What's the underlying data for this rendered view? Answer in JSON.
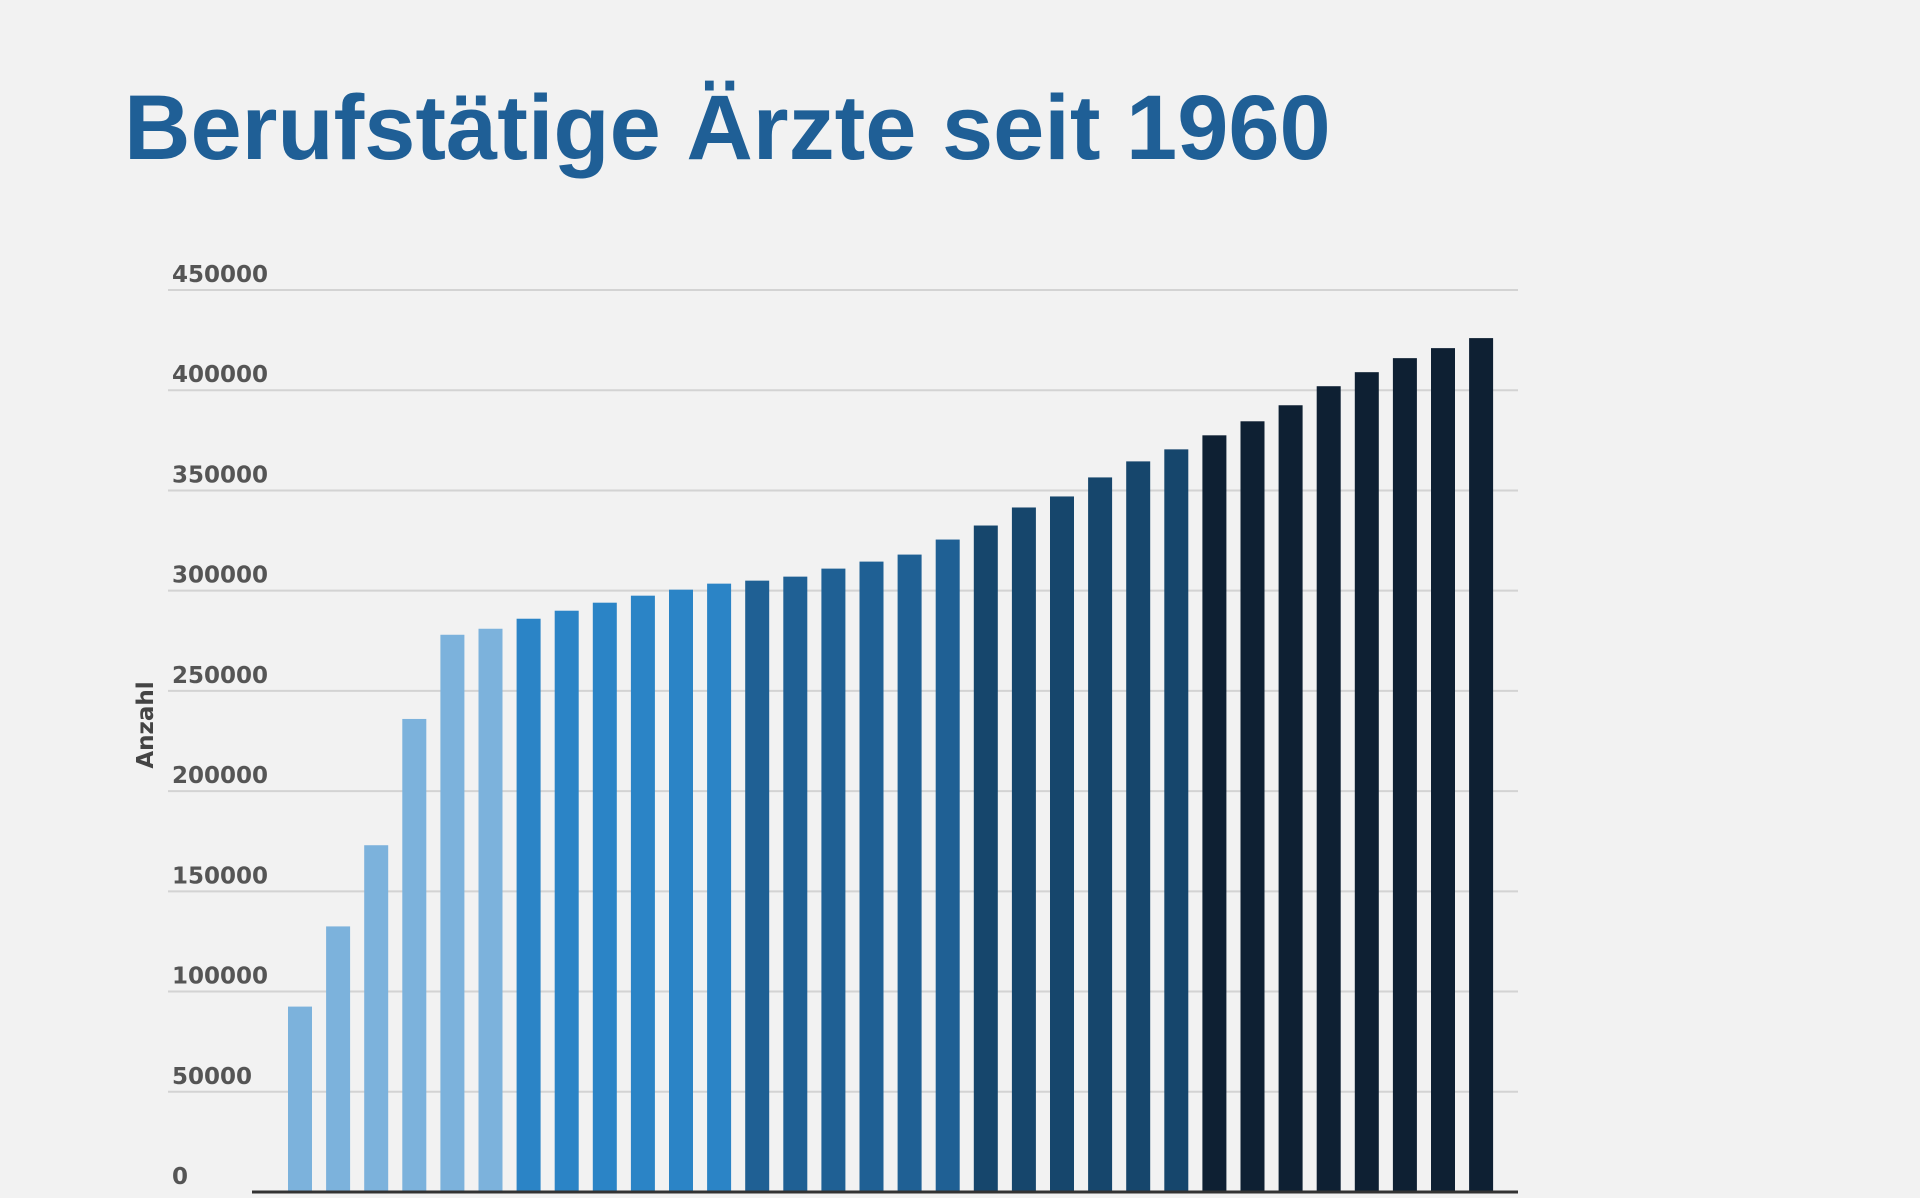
{
  "title": "Berufstätige Ärzte seit 1960",
  "colors": {
    "title": "#1f5f96",
    "background": "#f2f2f2",
    "bar_light": "#7cb2dc",
    "bar_medium": "#2b84c6",
    "bar_dark": "#1f6094",
    "bar_darker": "#16466c",
    "bar_darkest": "#0e2033"
  },
  "chart_data": {
    "type": "bar",
    "title": "Berufstätige Ärzte seit 1960",
    "xlabel": "",
    "ylabel": "Anzahl",
    "ylim": [
      0,
      450000
    ],
    "yticks": [
      0,
      50000,
      100000,
      150000,
      200000,
      250000,
      300000,
      350000,
      400000,
      450000
    ],
    "ytick_labels": [
      "0",
      "50000",
      "100000",
      "150000",
      "200000",
      "250000",
      "300000",
      "350000",
      "400000",
      "450000"
    ],
    "grid": true,
    "legend": "none",
    "values": [
      92500,
      132500,
      173000,
      236000,
      278000,
      281000,
      286000,
      290000,
      294000,
      297500,
      300500,
      303500,
      305000,
      307000,
      311000,
      314500,
      318000,
      325500,
      332500,
      341500,
      347000,
      356500,
      364500,
      370500,
      377500,
      384500,
      392500,
      402000,
      409000,
      416000,
      421000,
      426000
    ],
    "bar_color_groups": [
      "bar_light",
      "bar_light",
      "bar_light",
      "bar_light",
      "bar_light",
      "bar_light",
      "bar_medium",
      "bar_medium",
      "bar_medium",
      "bar_medium",
      "bar_medium",
      "bar_medium",
      "bar_dark",
      "bar_dark",
      "bar_dark",
      "bar_dark",
      "bar_dark",
      "bar_dark",
      "bar_darker",
      "bar_darker",
      "bar_darker",
      "bar_darker",
      "bar_darker",
      "bar_darker",
      "bar_darkest",
      "bar_darkest",
      "bar_darkest",
      "bar_darkest",
      "bar_darkest",
      "bar_darkest",
      "bar_darkest",
      "bar_darkest"
    ]
  }
}
